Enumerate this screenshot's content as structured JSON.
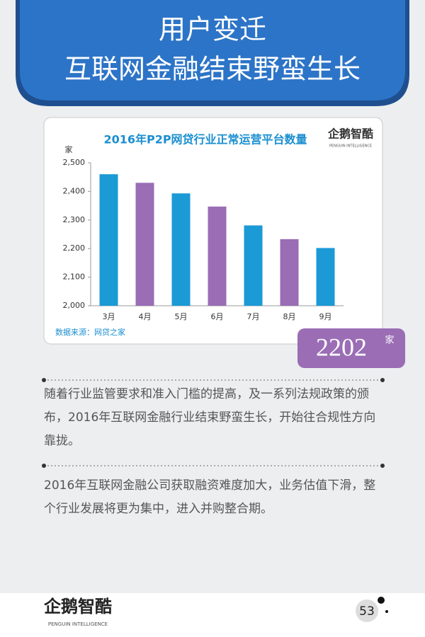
{
  "header": {
    "title_lines": [
      "用户变迁",
      "互联网金融结束野蛮生长"
    ]
  },
  "chart_data": {
    "type": "bar",
    "title": "2016年P2P网贷行业正常运营平台数量",
    "y_label": "家",
    "categories": [
      "3月",
      "4月",
      "5月",
      "6月",
      "7月",
      "8月",
      "9月"
    ],
    "values": [
      2460,
      2430,
      2393,
      2347,
      2281,
      2233,
      2202
    ],
    "colors": [
      "#1b9ad6",
      "#9a6db5",
      "#1b9ad6",
      "#9a6db5",
      "#1b9ad6",
      "#9a6db5",
      "#1b9ad6"
    ],
    "ylim": [
      2000,
      2500
    ],
    "yticks": [
      {
        "value": 2000,
        "label": "2,000"
      },
      {
        "value": 2100,
        "label": "2,100"
      },
      {
        "value": 2200,
        "label": "2,200"
      },
      {
        "value": 2300,
        "label": "2,300"
      },
      {
        "value": 2400,
        "label": "2,400"
      },
      {
        "value": 2500,
        "label": "2,500"
      }
    ],
    "source": "数据来源：网贷之家",
    "logo": {
      "name": "企鹅智酷",
      "subtitle": "PENGUIN INTELLIGENCE"
    }
  },
  "callout": {
    "value": "2202",
    "unit": "家"
  },
  "paragraphs": [
    "随着行业监管要求和准入门槛的提高，及一系列法规政策的颁布，2016年互联网金融行业结束野蛮生长，开始往合规性方向靠拢。",
    "2016年互联网金融公司获取融资难度加大，业务估值下滑，整个行业发展将更为集中，进入并购整合期。"
  ],
  "footer": {
    "logo": "企鹅智酷",
    "logo_subtitle": "PENGUIN INTELLIGENCE",
    "page": "53"
  }
}
